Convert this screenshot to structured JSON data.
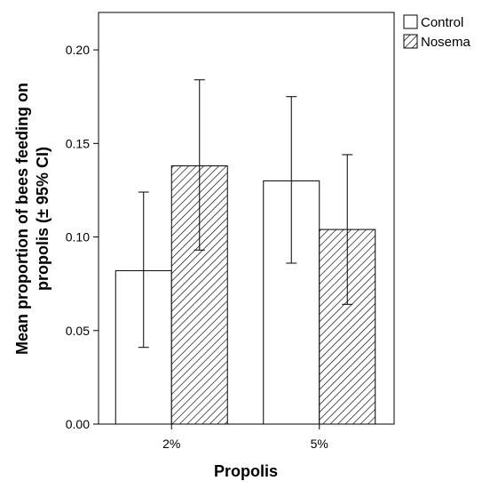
{
  "chart_data": {
    "type": "bar",
    "xlabel": "Propolis",
    "ylabel_lines": [
      "Mean proportion of bees feeding on",
      "propolis (± 95% CI)"
    ],
    "categories": [
      "2%",
      "5%"
    ],
    "ylim": [
      0,
      0.22
    ],
    "yticks": [
      "0.00",
      "0.05",
      "0.10",
      "0.15",
      "0.20"
    ],
    "ytick_values": [
      0,
      0.05,
      0.1,
      0.15,
      0.2
    ],
    "grid": false,
    "legend_position": "top-right",
    "series": [
      {
        "name": "Control",
        "fill": "plain",
        "values": [
          0.082,
          0.13
        ],
        "ci_low": [
          0.041,
          0.086
        ],
        "ci_high": [
          0.124,
          0.175
        ]
      },
      {
        "name": "Nosema",
        "fill": "hatched",
        "values": [
          0.138,
          0.104
        ],
        "ci_low": [
          0.093,
          0.064
        ],
        "ci_high": [
          0.184,
          0.144
        ]
      }
    ]
  }
}
